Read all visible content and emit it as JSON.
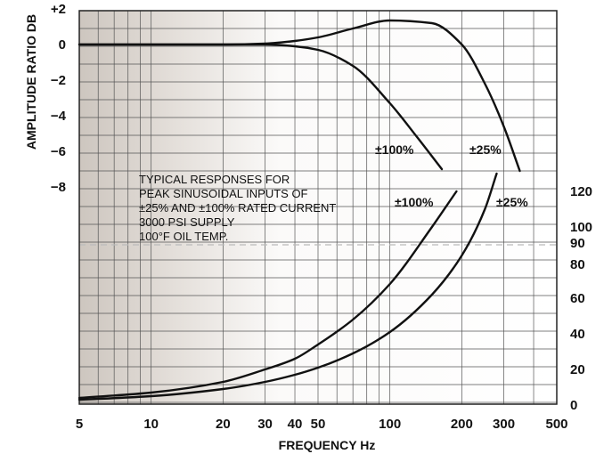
{
  "chart_data": {
    "type": "line",
    "title": "",
    "xlabel": "FREQUENCY Hz",
    "ylabel": "AMPLITUDE RATIO DB",
    "x_scale": "log",
    "xlim": [
      5,
      500
    ],
    "x_ticks": [
      5,
      10,
      20,
      30,
      40,
      50,
      100,
      200,
      300,
      500
    ],
    "x_tick_labels": [
      "5",
      "10",
      "20",
      "30",
      "40",
      "50",
      "100",
      "200",
      "300",
      "500"
    ],
    "ylim_left": [
      -8,
      2
    ],
    "y_left_ticks": [
      2,
      0,
      -2,
      -4,
      -6,
      -8
    ],
    "y_left_tick_labels": [
      "+2",
      "0",
      "−2",
      "−4",
      "−6",
      "−8"
    ],
    "y_right_ticks": [
      0,
      20,
      40,
      60,
      80,
      90,
      100,
      120
    ],
    "y_right_tick_labels": [
      "0",
      "20",
      "40",
      "60",
      "80",
      "90",
      "100",
      "120"
    ],
    "grid": true,
    "reference_line": {
      "axis": "right",
      "value": 90,
      "style": "dashed"
    },
    "note_lines": [
      "TYPICAL RESPONSES FOR",
      "PEAK SINUSOIDAL INPUTS OF",
      "±25% AND ±100% RATED CURRENT",
      "3000 PSI SUPPLY",
      "100°F OIL TEMP."
    ],
    "series": [
      {
        "name": "±25%",
        "axis": "left",
        "x": [
          5,
          20,
          30,
          40,
          50,
          70,
          100,
          150,
          200,
          250,
          300,
          350
        ],
        "y": [
          0,
          0,
          0.05,
          0.2,
          0.4,
          0.9,
          1.35,
          1.2,
          0,
          -2.2,
          -4.6,
          -7.1
        ]
      },
      {
        "name": "±100%",
        "axis": "left",
        "x": [
          5,
          20,
          30,
          40,
          50,
          70,
          100,
          130,
          165
        ],
        "y": [
          0,
          0,
          0,
          -0.1,
          -0.3,
          -1.2,
          -3.3,
          -5.2,
          -7.0
        ]
      },
      {
        "name": "±100%",
        "axis": "right",
        "x": [
          5,
          10,
          20,
          30,
          40,
          50,
          70,
          100,
          150,
          190
        ],
        "y": [
          4,
          7,
          13,
          20,
          26,
          34,
          48,
          68,
          100,
          120
        ]
      },
      {
        "name": "±25%",
        "axis": "right",
        "x": [
          5,
          10,
          20,
          30,
          40,
          50,
          70,
          100,
          150,
          200,
          250,
          280
        ],
        "y": [
          3,
          5,
          9,
          13,
          17,
          21,
          29,
          41,
          62,
          84,
          110,
          130
        ]
      }
    ],
    "series_labels": [
      "±100%",
      "±25%",
      "±100%",
      "±25%"
    ]
  }
}
